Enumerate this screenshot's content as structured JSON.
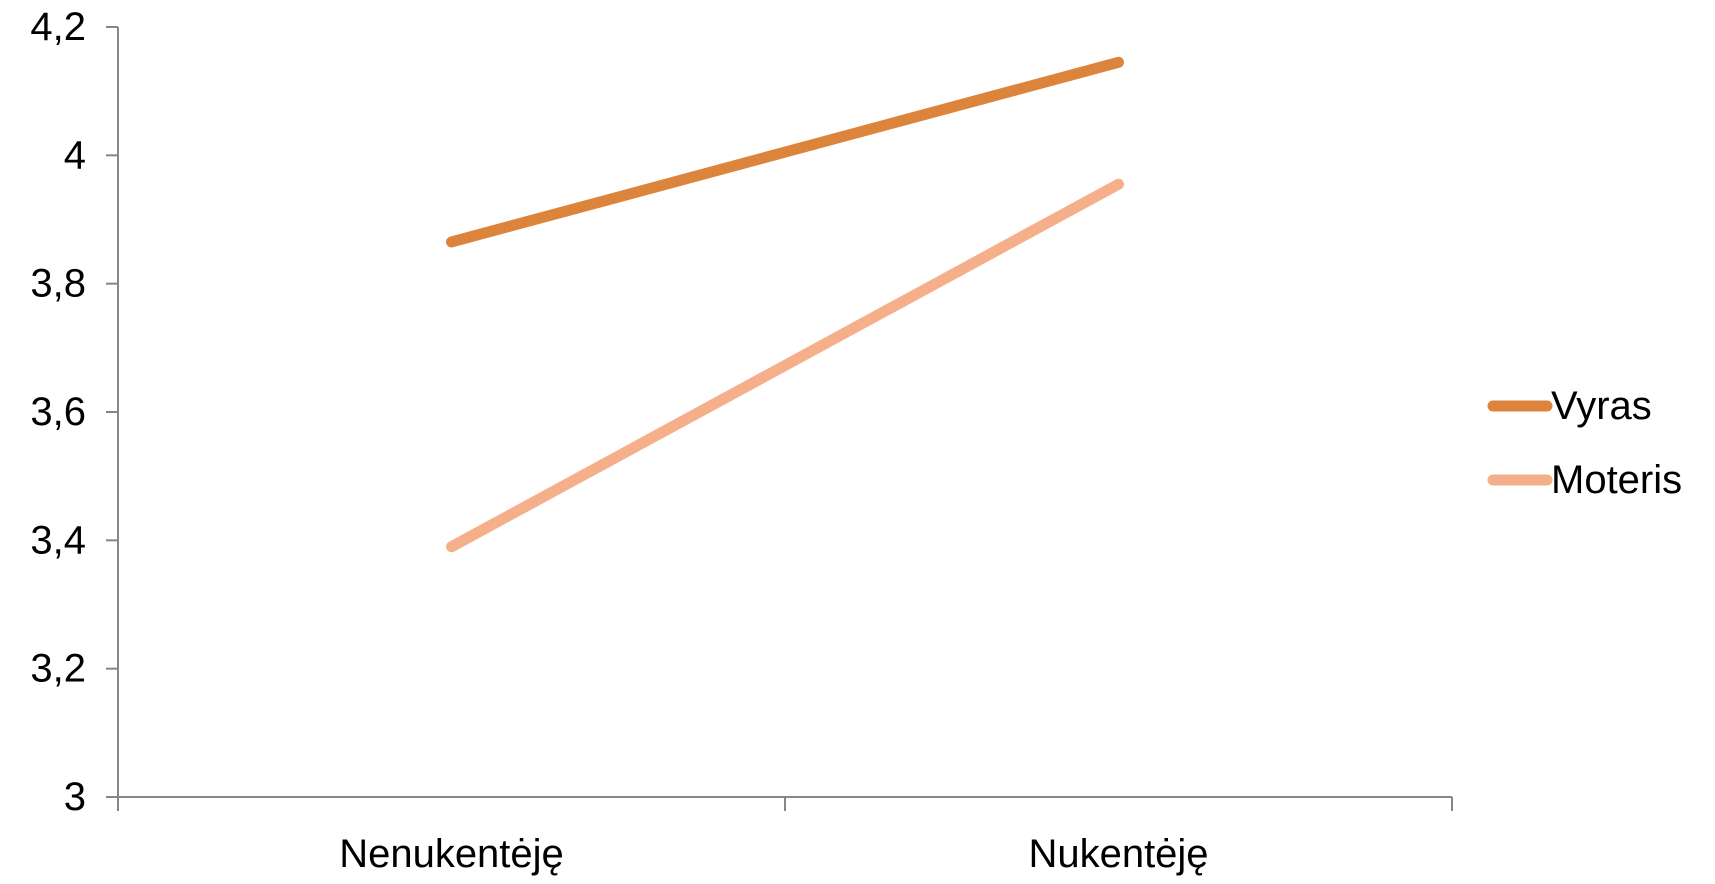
{
  "chart_data": {
    "type": "line",
    "title": "",
    "xlabel": "",
    "ylabel": "",
    "categories": [
      "Nenukentėję",
      "Nukentėję"
    ],
    "ylim": [
      3,
      4.2
    ],
    "y_ticks": [
      "3",
      "3,2",
      "3,4",
      "3,6",
      "3,8",
      "4",
      "4,2"
    ],
    "y_tick_values": [
      3,
      3.2,
      3.4,
      3.6,
      3.8,
      4,
      4.2
    ],
    "grid": false,
    "legend_position": "right",
    "series": [
      {
        "name": "Vyras",
        "values": [
          3.865,
          4.145
        ],
        "color": "#DD843C"
      },
      {
        "name": "Moteris",
        "values": [
          3.39,
          3.955
        ],
        "color": "#F6AF8B"
      }
    ]
  }
}
